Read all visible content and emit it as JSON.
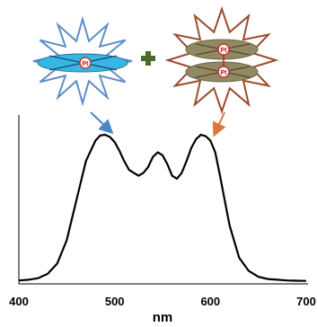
{
  "left_complex": {
    "metal_label": "Pt",
    "burst_color": "#5f8fc6",
    "disc_color": "#35b6e5"
  },
  "right_complex": {
    "metal_labels": [
      "Pt",
      "Pt"
    ],
    "burst_color": "#9b4a2c",
    "disc_color": "#8f8a63"
  },
  "plus_color": "#4a6b2a",
  "arrows": {
    "left_color": "#4a86c8",
    "right_color": "#d9783a"
  },
  "chart_data": {
    "type": "line",
    "x_ticks": [
      "400",
      "500",
      "600",
      "700"
    ],
    "x_unit": "nm",
    "xlim": [
      400,
      700
    ],
    "ylim": [
      0,
      1.05
    ],
    "series": [
      {
        "x": [
          400,
          410,
          420,
          430,
          440,
          450,
          460,
          470,
          480,
          485,
          490,
          495,
          500,
          505,
          510,
          515,
          520,
          525,
          530,
          535,
          540,
          545,
          550,
          555,
          560,
          565,
          570,
          575,
          580,
          585,
          590,
          595,
          600,
          605,
          610,
          615,
          620,
          630,
          640,
          650,
          660,
          670,
          680,
          690,
          700
        ],
        "y": [
          0.005,
          0.01,
          0.02,
          0.05,
          0.12,
          0.28,
          0.55,
          0.82,
          0.96,
          0.995,
          1.0,
          0.985,
          0.95,
          0.89,
          0.82,
          0.76,
          0.74,
          0.72,
          0.74,
          0.78,
          0.85,
          0.88,
          0.86,
          0.8,
          0.72,
          0.7,
          0.74,
          0.82,
          0.91,
          0.97,
          1.0,
          0.99,
          0.96,
          0.88,
          0.72,
          0.55,
          0.38,
          0.16,
          0.07,
          0.03,
          0.015,
          0.01,
          0.005,
          0.003,
          0.002
        ]
      }
    ]
  }
}
